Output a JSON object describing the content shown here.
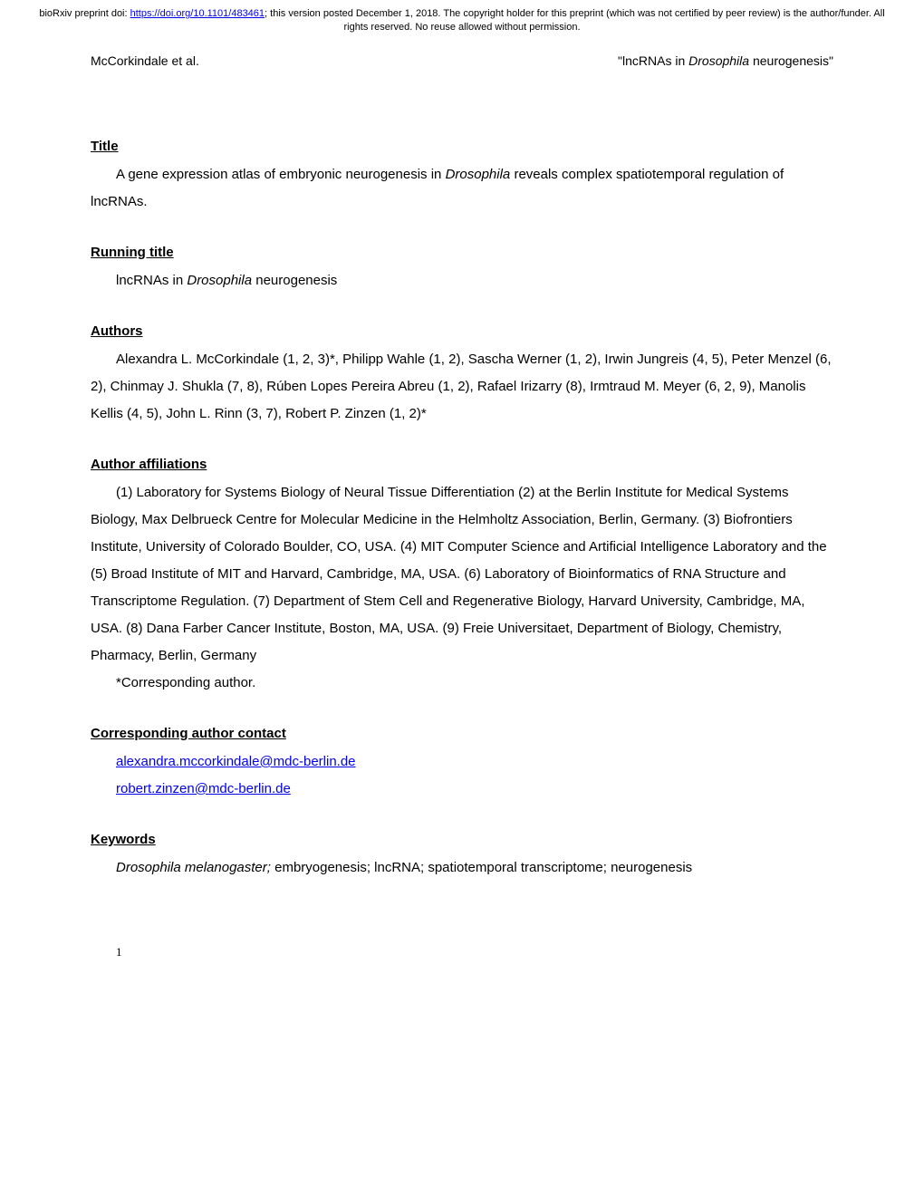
{
  "preprint": {
    "text_prefix": "bioRxiv preprint doi: ",
    "doi_url": "https://doi.org/10.1101/483461",
    "text_suffix": "; this version posted December 1, 2018. The copyright holder for this preprint (which was not certified by peer review) is the author/funder. All rights reserved. No reuse allowed without permission."
  },
  "header": {
    "left": "McCorkindale et al.",
    "right_prefix": "\"lncRNAs in ",
    "right_italic": "Drosophila",
    "right_suffix": " neurogenesis\""
  },
  "sections": {
    "title": {
      "heading": " Title",
      "body_prefix": "A gene expression atlas of embryonic neurogenesis in ",
      "body_italic": "Drosophila",
      "body_suffix": " reveals complex spatiotemporal regulation of lncRNAs."
    },
    "running_title": {
      "heading": "Running title",
      "body_prefix": "lncRNAs in ",
      "body_italic": "Drosophila",
      "body_suffix": " neurogenesis"
    },
    "authors": {
      "heading": "Authors",
      "body": "Alexandra L. McCorkindale (1, 2, 3)*, Philipp Wahle (1, 2), Sascha Werner (1, 2), Irwin Jungreis (4, 5), Peter Menzel (6, 2), Chinmay J. Shukla (7, 8), Rúben Lopes Pereira Abreu (1, 2), Rafael Irizarry (8), Irmtraud M. Meyer (6, 2, 9), Manolis Kellis (4, 5), John L. Rinn (3, 7), Robert P. Zinzen (1, 2)*"
    },
    "affiliations": {
      "heading": "Author affiliations",
      "body": "(1) Laboratory for Systems Biology of Neural Tissue Differentiation (2) at the Berlin Institute for Medical Systems Biology, Max Delbrueck Centre for Molecular Medicine in the Helmholtz Association, Berlin, Germany. (3) Biofrontiers Institute, University of Colorado Boulder, CO, USA. (4) MIT Computer Science and Artificial Intelligence Laboratory and the (5) Broad Institute of MIT and Harvard, Cambridge, MA, USA. (6) Laboratory of Bioinformatics of RNA Structure and Transcriptome Regulation. (7) Department of Stem Cell and Regenerative Biology, Harvard University, Cambridge, MA, USA. (8) Dana Farber Cancer Institute, Boston, MA, USA. (9) Freie Universitaet, Department of Biology, Chemistry, Pharmacy, Berlin, Germany",
      "corresponding": "*Corresponding author."
    },
    "contact": {
      "heading": "Corresponding author contact",
      "email1": "alexandra.mccorkindale@mdc-berlin.de",
      "email2": "robert.zinzen@mdc-berlin.de"
    },
    "keywords": {
      "heading": "Keywords",
      "body_italic": "Drosophila melanogaster;",
      "body_suffix": " embryogenesis; lncRNA; spatiotemporal transcriptome; neurogenesis"
    }
  },
  "page_number": "1"
}
